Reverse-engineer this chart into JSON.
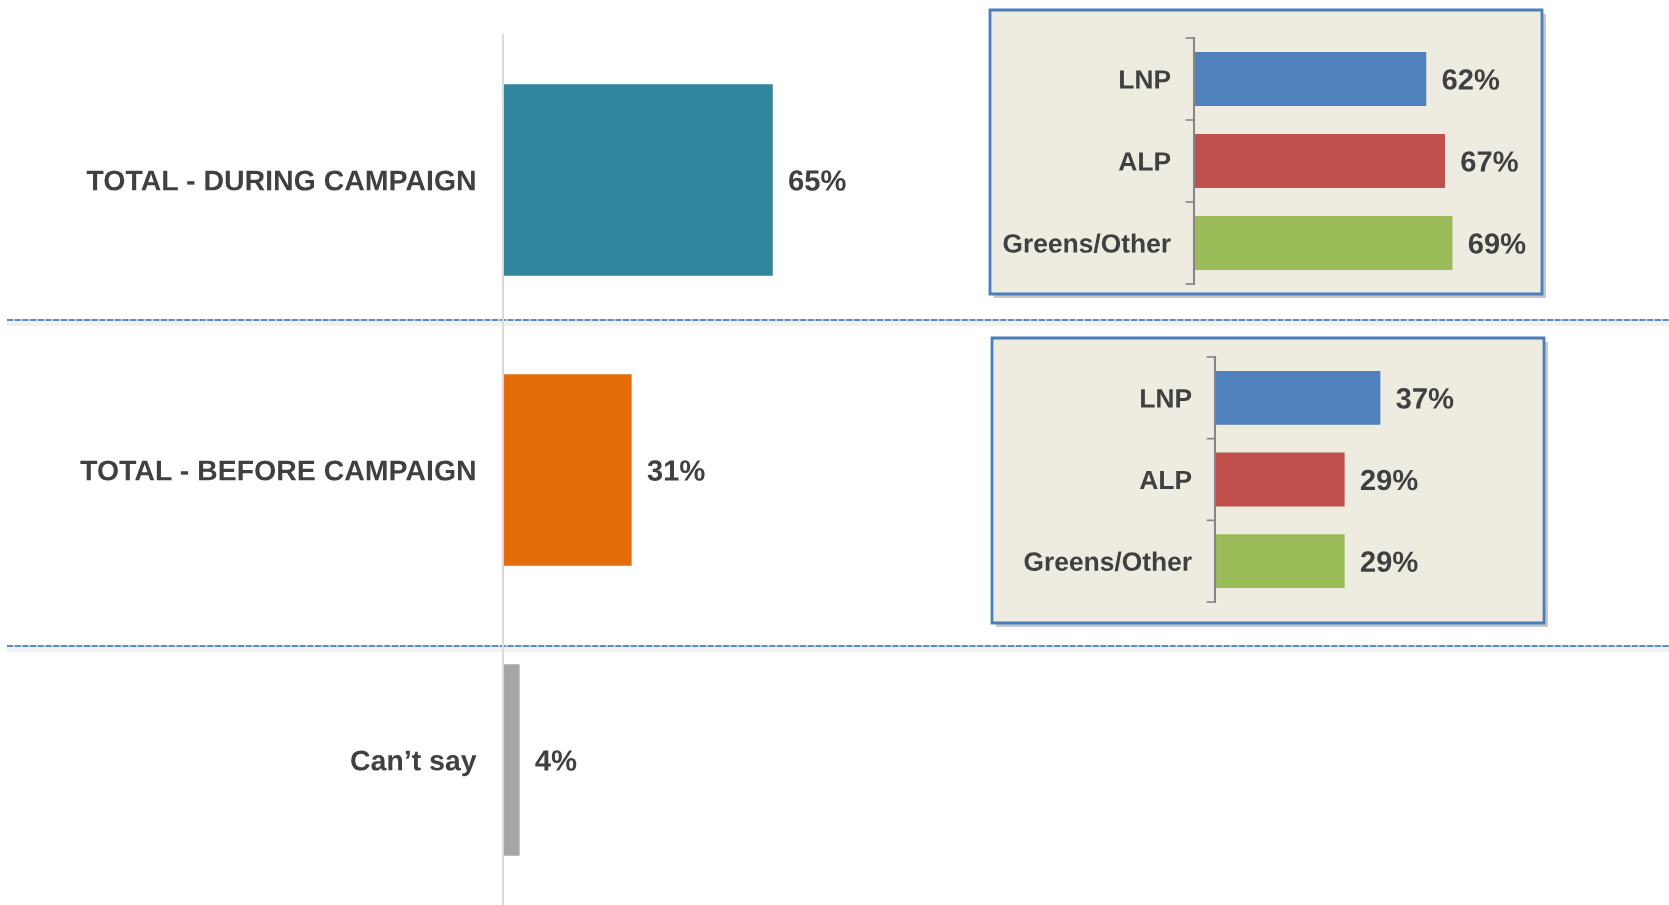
{
  "chart_data": [
    {
      "type": "bar",
      "orientation": "horizontal",
      "categories": [
        "TOTAL - DURING CAMPAIGN",
        "TOTAL - BEFORE CAMPAIGN",
        "Can’t say"
      ],
      "values": [
        65,
        31,
        4
      ],
      "colors": [
        "#31859c",
        "#e46c0a",
        "#a6a6a6"
      ],
      "value_labels": [
        "65%",
        "31%",
        "4%"
      ],
      "tick_labels": "y"
    },
    {
      "type": "bar",
      "orientation": "horizontal",
      "categories": [
        "LNP",
        "ALP",
        "Greens/Other"
      ],
      "values": [
        62,
        67,
        69
      ],
      "colors": [
        "#4f81bd",
        "#c0504d",
        "#9bbb59"
      ],
      "value_labels": [
        "62%",
        "67%",
        "69%"
      ],
      "tick_labels": "y"
    },
    {
      "type": "bar",
      "orientation": "horizontal",
      "categories": [
        "LNP",
        "ALP",
        "Greens/Other"
      ],
      "values": [
        37,
        29,
        29
      ],
      "colors": [
        "#4f81bd",
        "#c0504d",
        "#9bbb59"
      ],
      "value_labels": [
        "37%",
        "29%",
        "29%"
      ],
      "tick_labels": "y"
    }
  ]
}
